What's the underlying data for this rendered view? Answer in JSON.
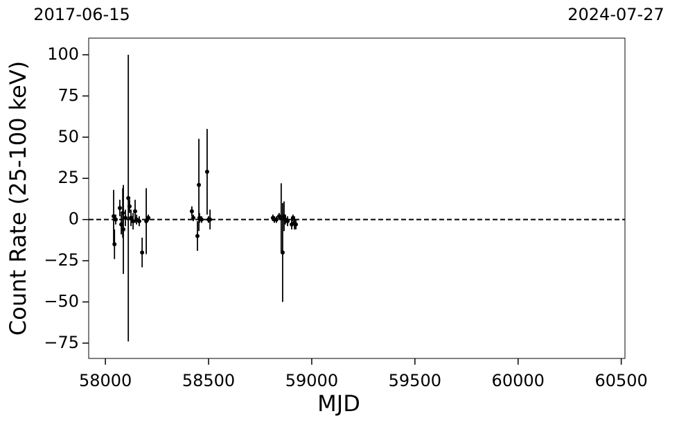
{
  "chart_data": {
    "type": "errorbar",
    "xlabel": "MJD",
    "ylabel": "Count Rate (25-100 keV)",
    "color": "#000000",
    "x": [
      58040,
      58044,
      58050,
      58070,
      58077,
      58084,
      58087,
      58097,
      58111,
      58117,
      58124,
      58134,
      58144,
      58151,
      58164,
      58178,
      58198,
      58208,
      58419,
      58426,
      58446,
      58453,
      58456,
      58466,
      58493,
      58500,
      58507,
      58812,
      58819,
      58829,
      58842,
      58852,
      58859,
      58866,
      58872,
      58883,
      58903,
      58909,
      58916,
      58923
    ],
    "y": [
      2,
      -15,
      0,
      7,
      -3,
      4,
      -6,
      1,
      13,
      8,
      1,
      -1,
      5,
      0,
      -1,
      -20,
      -1,
      1,
      5,
      1,
      -10,
      21,
      1,
      0,
      29,
      0,
      0,
      1,
      0,
      0,
      2,
      1,
      -20,
      2,
      0,
      -1,
      -3,
      1,
      -2,
      -3
    ],
    "yerr": [
      16,
      9,
      3,
      5,
      6,
      15,
      27,
      5,
      87,
      4,
      5,
      5,
      7,
      3,
      3,
      9,
      20,
      2,
      3,
      2,
      9,
      28,
      3,
      2,
      26,
      2,
      6,
      2,
      2,
      2,
      2,
      21,
      30,
      9,
      3,
      3,
      3,
      2,
      4,
      3
    ],
    "reference_line": 0,
    "xlim": [
      57919,
      60518
    ],
    "ylim": [
      -84.3,
      110.1
    ],
    "xticks": [
      58000,
      58500,
      59000,
      59500,
      60000,
      60500
    ],
    "yticks": [
      {
        "value": -75,
        "label": "−75"
      },
      {
        "value": -50,
        "label": "−50"
      },
      {
        "value": -25,
        "label": "−25"
      },
      0,
      25,
      50,
      75,
      100
    ],
    "x2ticks": [
      {
        "value": 57919,
        "label": "2017-06-15"
      },
      {
        "value": 60518,
        "label": "2024-07-27"
      }
    ]
  }
}
